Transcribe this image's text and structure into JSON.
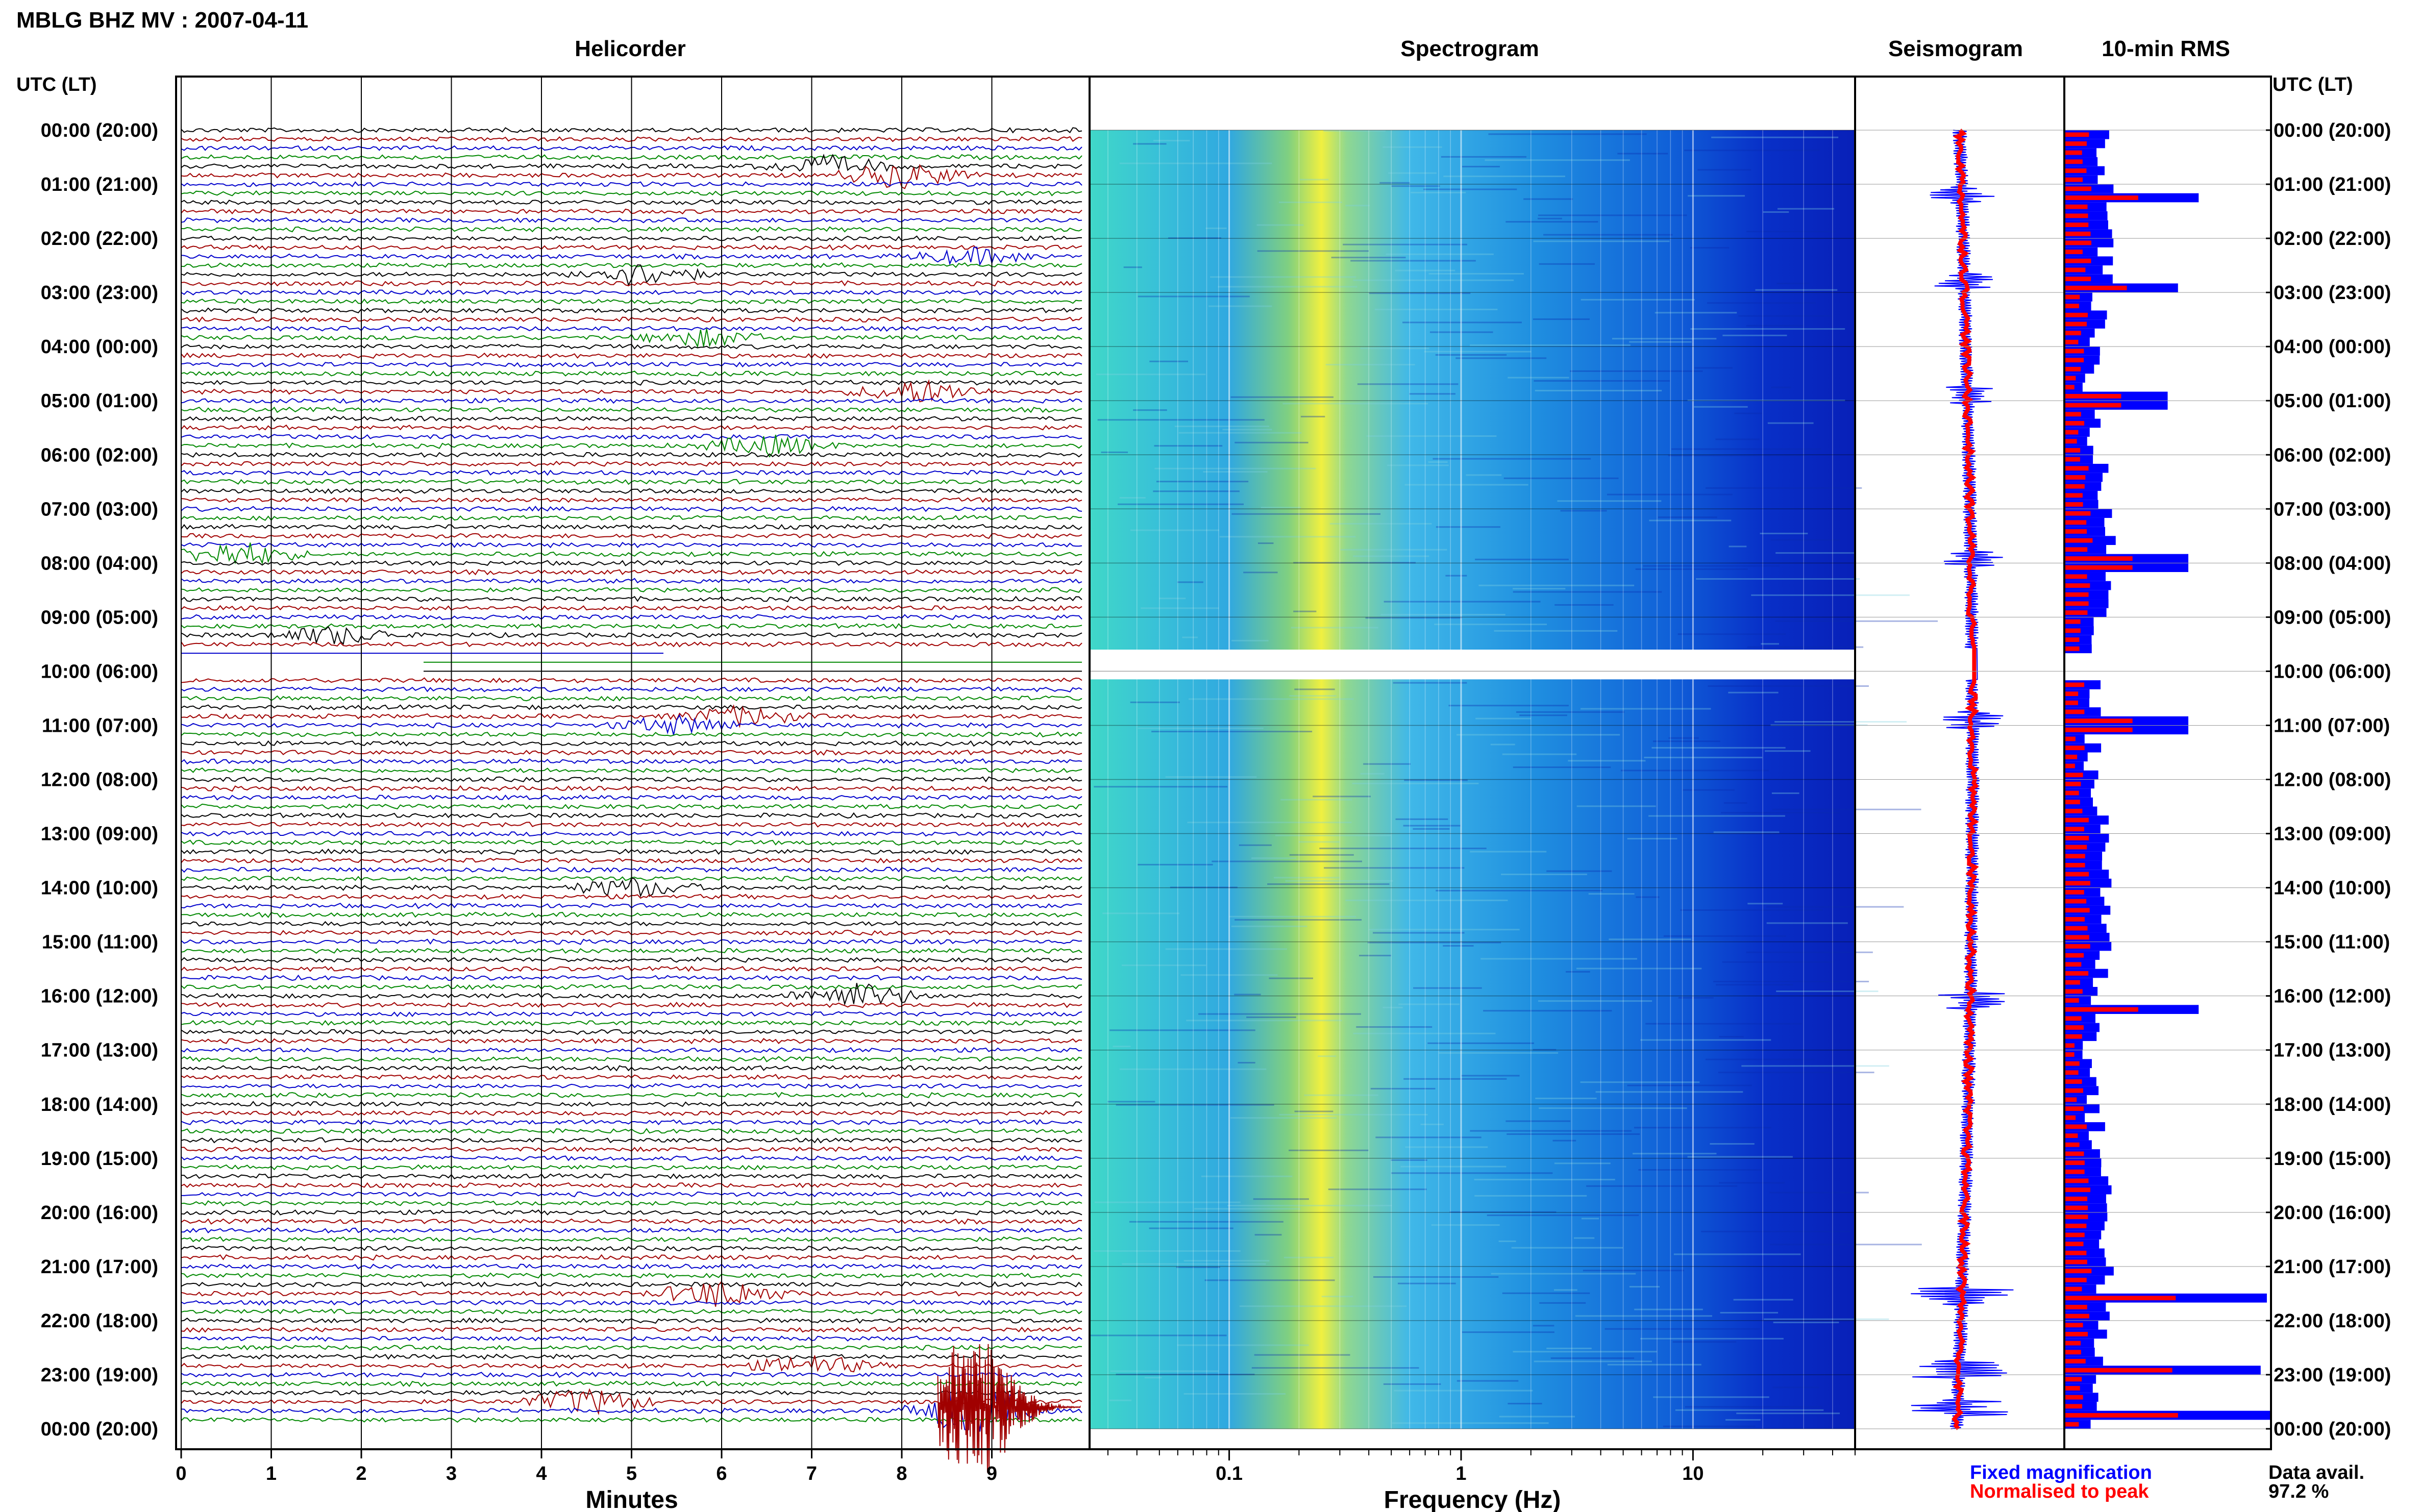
{
  "header": {
    "title": "MBLG BHZ MV : 2007-04-11"
  },
  "panels": {
    "helicorder": "Helicorder",
    "spectrogram": "Spectrogram",
    "seismogram": "Seismogram",
    "rms": "10-min RMS"
  },
  "axis": {
    "time_heading": "UTC (LT)",
    "minutes_label": "Minutes",
    "frequency_label": "Frequency (Hz)"
  },
  "legend": {
    "fixed": "Fixed magnification",
    "normalised": "Normalised to peak",
    "colors": {
      "fixed": "#0000ff",
      "normalised": "#ff0000"
    }
  },
  "data_avail": {
    "label": "Data avail.",
    "value": "97.2 %"
  },
  "chart_data": {
    "type": "heatmap",
    "title": "MBLG BHZ MV : 2007-04-11",
    "time_labels": [
      "00:00 (20:00)",
      "01:00 (21:00)",
      "02:00 (22:00)",
      "03:00 (23:00)",
      "04:00 (00:00)",
      "05:00 (01:00)",
      "06:00 (02:00)",
      "07:00 (03:00)",
      "08:00 (04:00)",
      "09:00 (05:00)",
      "10:00 (06:00)",
      "11:00 (07:00)",
      "12:00 (08:00)",
      "13:00 (09:00)",
      "14:00 (10:00)",
      "15:00 (11:00)",
      "16:00 (12:00)",
      "17:00 (13:00)",
      "18:00 (14:00)",
      "19:00 (15:00)",
      "20:00 (16:00)",
      "21:00 (17:00)",
      "22:00 (18:00)",
      "23:00 (19:00)",
      "00:00 (20:00)"
    ],
    "helicorder": {
      "x_ticks": [
        "0",
        "1",
        "2",
        "3",
        "4",
        "5",
        "6",
        "7",
        "8",
        "9"
      ],
      "xlim": [
        0,
        10
      ],
      "xlabel": "Minutes",
      "trace_colors": [
        "#000000",
        "#a00000",
        "#0000cc",
        "#008800"
      ],
      "gap_hours": [
        9.6,
        10.15
      ],
      "events": [
        {
          "hour": 0.7,
          "minute": 7.2,
          "amp": 1.5
        },
        {
          "hour": 0.85,
          "minute": 8.0,
          "amp": 2.0
        },
        {
          "hour": 2.6,
          "minute": 5.1,
          "amp": 1.8
        },
        {
          "hour": 2.3,
          "minute": 8.8,
          "amp": 1.2
        },
        {
          "hour": 3.8,
          "minute": 5.8,
          "amp": 1.3
        },
        {
          "hour": 4.85,
          "minute": 8.2,
          "amp": 1.8
        },
        {
          "hour": 5.9,
          "minute": 6.5,
          "amp": 1.6
        },
        {
          "hour": 7.9,
          "minute": 0.6,
          "amp": 2.0
        },
        {
          "hour": 9.3,
          "minute": 1.7,
          "amp": 1.4
        },
        {
          "hour": 10.8,
          "minute": 6.2,
          "amp": 1.5
        },
        {
          "hour": 11.0,
          "minute": 5.5,
          "amp": 1.4
        },
        {
          "hour": 13.95,
          "minute": 5.0,
          "amp": 1.5
        },
        {
          "hour": 16.05,
          "minute": 7.5,
          "amp": 2.0
        },
        {
          "hour": 21.45,
          "minute": 6.0,
          "amp": 2.2
        },
        {
          "hour": 22.8,
          "minute": 7.0,
          "amp": 1.5
        },
        {
          "hour": 23.5,
          "minute": 4.5,
          "amp": 2.0
        },
        {
          "hour": 23.6,
          "minute": 8.8,
          "amp": 4.0
        }
      ]
    },
    "spectrogram": {
      "x_ticks": [
        "0.1",
        "1",
        "10"
      ],
      "x_tick_values": [
        0.1,
        1,
        10
      ],
      "xlim": [
        0.025,
        50
      ],
      "xscale": "log",
      "xlabel": "Frequency (Hz)",
      "peak_frequency_hz": 0.25,
      "gap_hours": [
        9.6,
        10.15
      ]
    },
    "seismogram": {
      "colors": {
        "fixed": "#0000ff",
        "normalised": "#ff0000"
      }
    },
    "rms": {
      "bins": 144,
      "peaks": [
        {
          "hour": 1.2,
          "value": 0.65
        },
        {
          "hour": 2.8,
          "value": 0.55
        },
        {
          "hour": 4.9,
          "value": 0.5
        },
        {
          "hour": 7.9,
          "value": 0.6
        },
        {
          "hour": 10.9,
          "value": 0.6
        },
        {
          "hour": 16.1,
          "value": 0.65
        },
        {
          "hour": 21.55,
          "value": 0.98
        },
        {
          "hour": 22.9,
          "value": 0.95
        },
        {
          "hour": 23.6,
          "value": 1.0
        }
      ],
      "gap_hours": [
        9.6,
        10.15
      ]
    },
    "data_availability_percent": 97.2
  }
}
